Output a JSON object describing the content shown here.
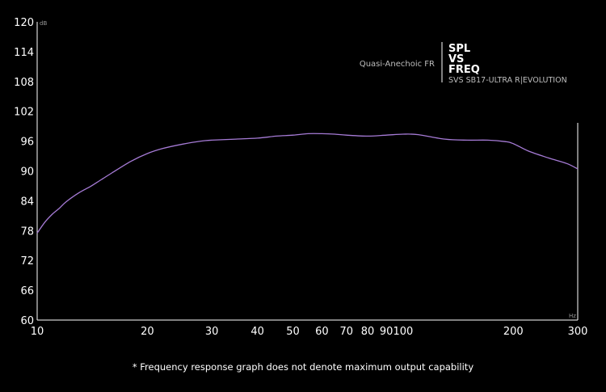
{
  "chart_data": {
    "type": "line",
    "title_lines": [
      "SPL",
      "VS",
      "FREQ"
    ],
    "subtitle": "SVS SB17-ULTRA R|EVOLUTION",
    "ylabel": "dB",
    "xlabel": "Hz",
    "x_scale": "log",
    "xlim": [
      10,
      300
    ],
    "ylim": [
      60,
      120
    ],
    "y_ticks": [
      60,
      66,
      72,
      78,
      84,
      90,
      96,
      102,
      108,
      114,
      120
    ],
    "x_ticks": [
      10,
      20,
      30,
      40,
      50,
      60,
      70,
      80,
      90,
      100,
      200,
      300
    ],
    "grid": false,
    "legend_position": "top-right",
    "series": [
      {
        "name": "Quasi-Anechoic FR",
        "color": "#a67bd6",
        "x": [
          10,
          10.5,
          11,
          11.5,
          12,
          13,
          14,
          15,
          16,
          18,
          20,
          22,
          25,
          28,
          30,
          35,
          40,
          45,
          50,
          55,
          60,
          65,
          70,
          80,
          90,
          100,
          110,
          130,
          150,
          170,
          190,
          200,
          220,
          250,
          280,
          300
        ],
        "y": [
          77.5,
          79.7,
          81.3,
          82.5,
          83.8,
          85.6,
          86.9,
          88.3,
          89.6,
          91.9,
          93.5,
          94.5,
          95.4,
          96.0,
          96.2,
          96.4,
          96.6,
          97.0,
          97.2,
          97.5,
          97.5,
          97.4,
          97.2,
          97.0,
          97.2,
          97.4,
          97.3,
          96.4,
          96.2,
          96.2,
          95.9,
          95.5,
          94.0,
          92.6,
          91.5,
          90.4
        ]
      }
    ]
  },
  "footnote": "* Frequency response graph does not denote maximum output capability"
}
